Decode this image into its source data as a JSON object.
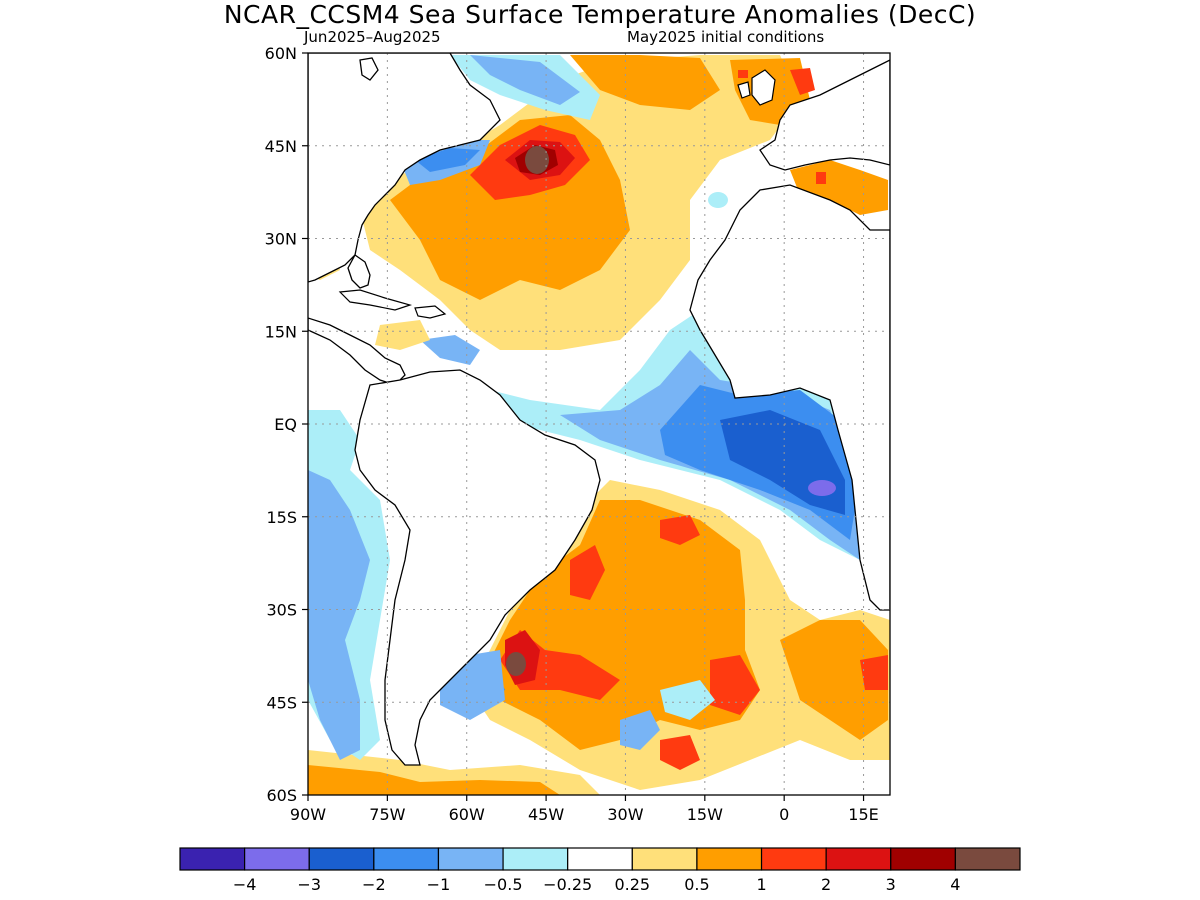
{
  "title": "NCAR_CCSM4 Sea Surface Temperature Anomalies (DecC)",
  "subtitle_left": "Jun2025–Aug2025",
  "subtitle_right": "May2025 initial conditions",
  "map": {
    "lon_range": [
      -90,
      20
    ],
    "lat_range": [
      -60,
      60
    ],
    "grid": true,
    "lat_ticks": [
      {
        "value": 60,
        "label": "60N"
      },
      {
        "value": 45,
        "label": "45N"
      },
      {
        "value": 30,
        "label": "30N"
      },
      {
        "value": 15,
        "label": "15N"
      },
      {
        "value": 0,
        "label": "EQ"
      },
      {
        "value": -15,
        "label": "15S"
      },
      {
        "value": -30,
        "label": "30S"
      },
      {
        "value": -45,
        "label": "45S"
      },
      {
        "value": -60,
        "label": "60S"
      }
    ],
    "lon_ticks": [
      {
        "value": -90,
        "label": "90W"
      },
      {
        "value": -75,
        "label": "75W"
      },
      {
        "value": -60,
        "label": "60W"
      },
      {
        "value": -45,
        "label": "45W"
      },
      {
        "value": -30,
        "label": "30W"
      },
      {
        "value": -15,
        "label": "15W"
      },
      {
        "value": 0,
        "label": "0"
      },
      {
        "value": 15,
        "label": "15E"
      }
    ]
  },
  "colorbar": {
    "colors": [
      "#3a22b0",
      "#7c6ceb",
      "#1a5fcf",
      "#3c8ef0",
      "#78b4f5",
      "#aceef8",
      "#ffffff",
      "#ffe07a",
      "#ff9e00",
      "#ff3a10",
      "#dc1212",
      "#a00000",
      "#7a4a3e"
    ],
    "labels": [
      "−4",
      "−3",
      "−2",
      "−1",
      "−0.5",
      "−0.25",
      "0.25",
      "0.5",
      "1",
      "2",
      "3",
      "4"
    ]
  },
  "colors": {
    "land": "#ffffff",
    "coastline": "#000000",
    "grid": "#999999"
  }
}
